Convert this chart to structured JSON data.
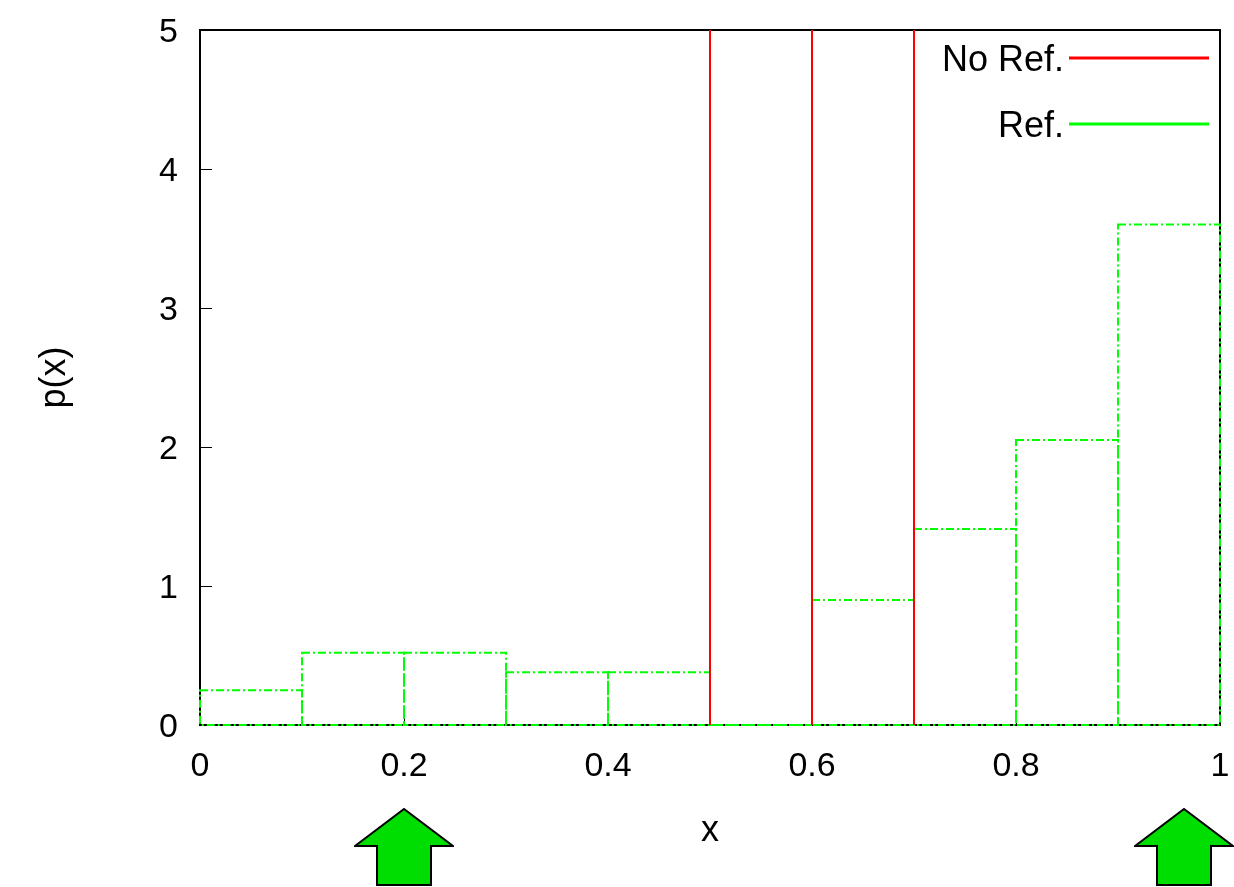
{
  "chart_data": {
    "type": "histogram",
    "xlabel": "x",
    "ylabel": "p(x)",
    "xlim": [
      0,
      1
    ],
    "xticks": [
      0,
      0.2,
      0.4,
      0.6,
      0.8,
      1
    ],
    "ylim": [
      0,
      5
    ],
    "yticks": [
      0,
      1,
      2,
      3,
      4,
      5
    ],
    "grid": false,
    "legend": "top right",
    "series": [
      {
        "name": "No Ref.",
        "type": "line",
        "color": "#ff0000",
        "line_style": "solid",
        "x": [
          0.5,
          0.5,
          null,
          0.6,
          0.6,
          null,
          0.7,
          0.7
        ],
        "values": [
          0,
          5,
          null,
          0,
          5,
          null,
          0,
          5
        ]
      },
      {
        "name": "Ref.",
        "color": "#00ff00",
        "line_style": "dashed",
        "bins": [
          0,
          0.1,
          0.2,
          0.3,
          0.4,
          0.5,
          0.6,
          0.7,
          0.8,
          0.9,
          1
        ],
        "values": [
          0.25,
          0.52,
          0.52,
          0.38,
          0.38,
          0,
          0.9,
          1.41,
          2.05,
          3.6
        ]
      }
    ]
  }
}
